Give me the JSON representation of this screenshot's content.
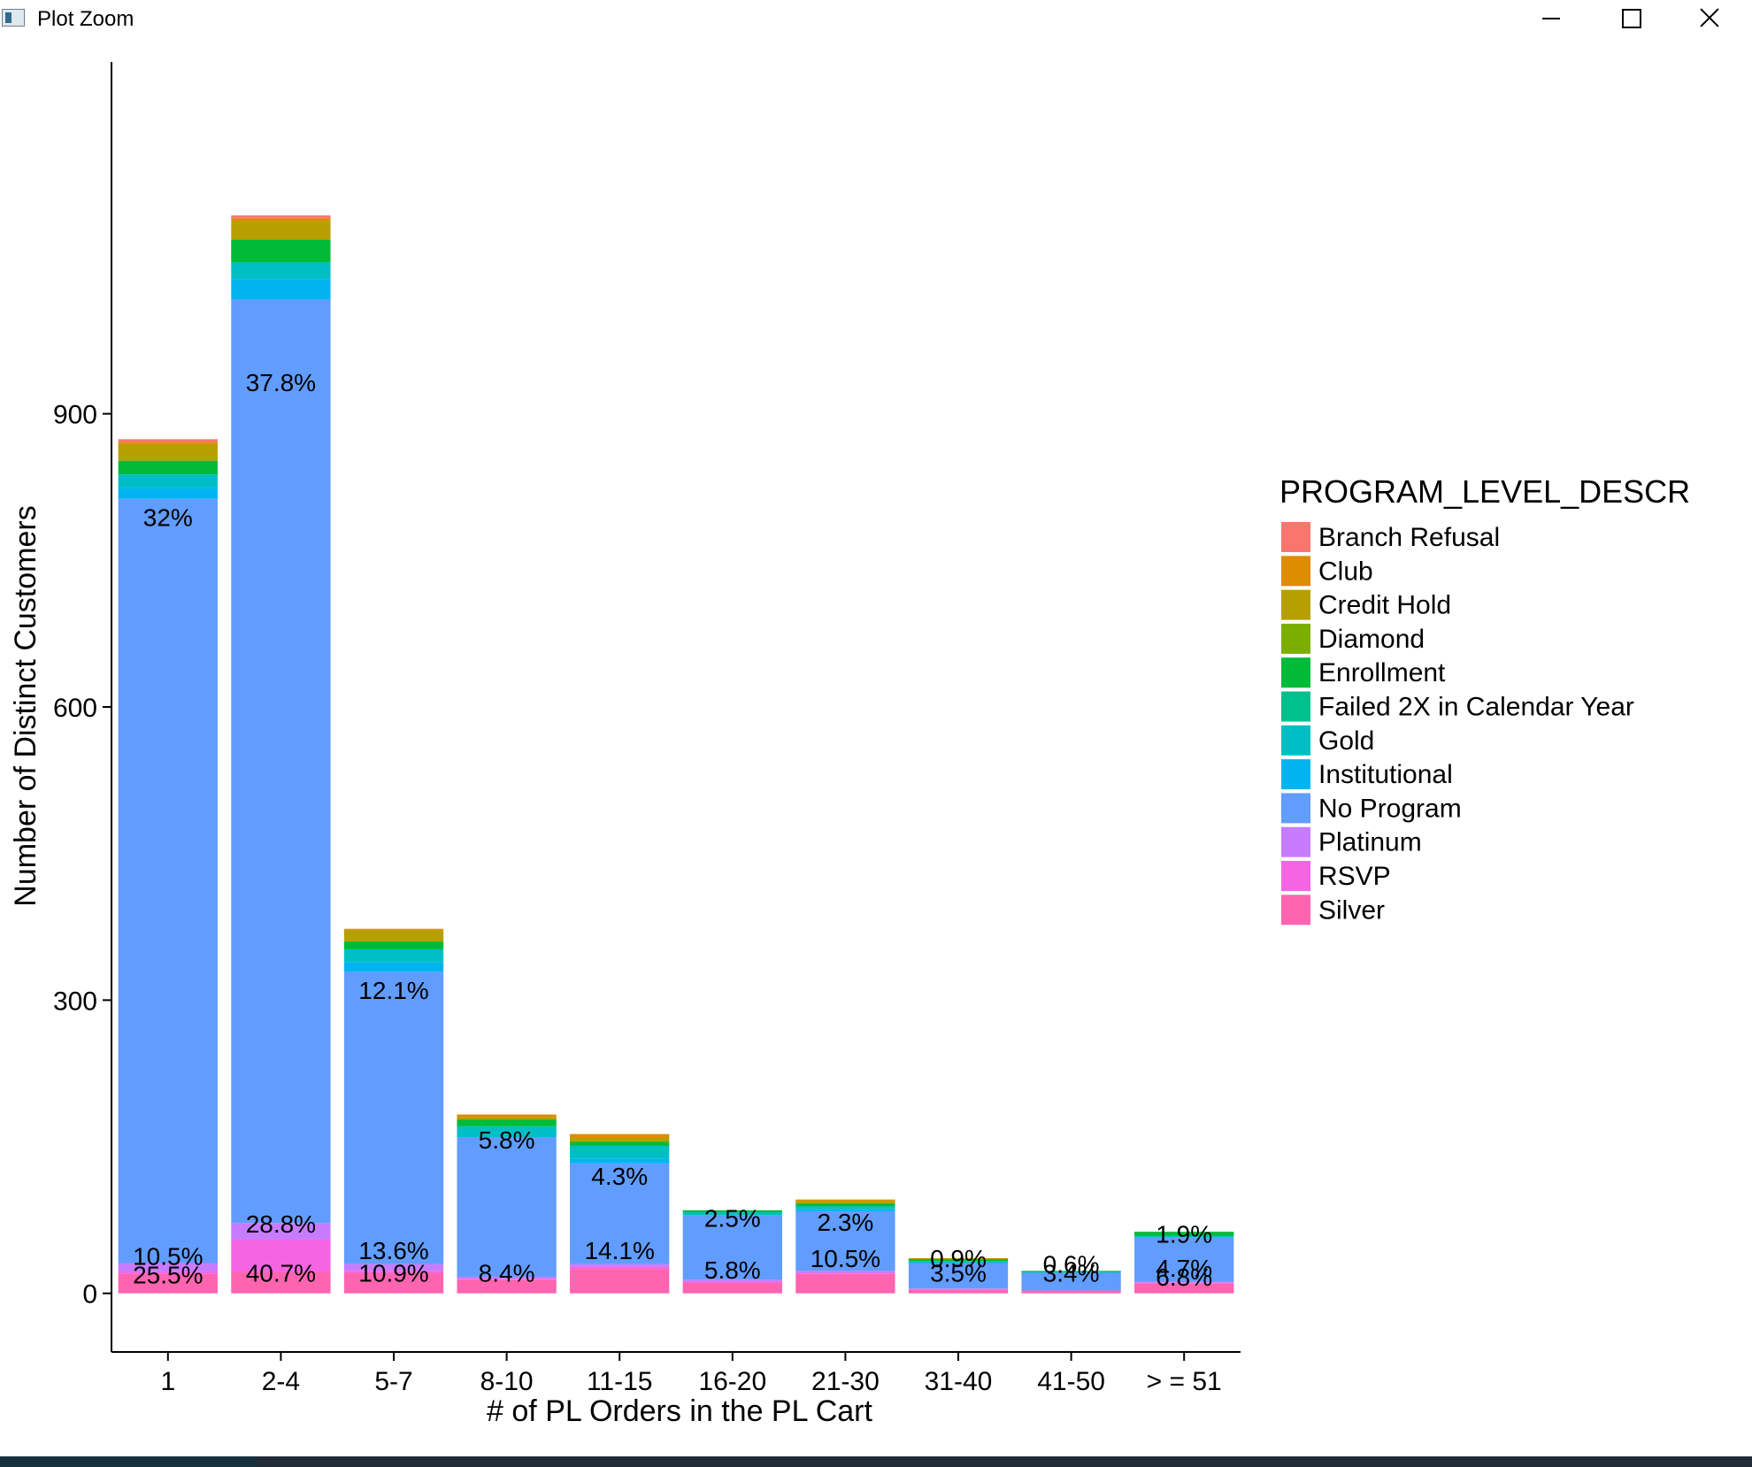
{
  "window": {
    "title": "Plot Zoom"
  },
  "chart_data": {
    "type": "bar",
    "stacked": true,
    "title": "",
    "xlabel": "# of PL Orders in the PL Cart",
    "ylabel": "Number of Distinct Customers",
    "ylim": [
      -60,
      1260
    ],
    "yticks": [
      0,
      300,
      600,
      900
    ],
    "grid": false,
    "legend_position": "right",
    "legend_title": "PROGRAM_LEVEL_DESCR",
    "categories": [
      "1",
      "2-4",
      "5-7",
      "8-10",
      "11-15",
      "16-20",
      "21-30",
      "31-40",
      "41-50",
      "> = 51"
    ],
    "series": [
      {
        "name": "Branch Refusal",
        "color": "#F8766D",
        "values": [
          3,
          3,
          0,
          0,
          0,
          0,
          0,
          0,
          0,
          0
        ]
      },
      {
        "name": "Club",
        "color": "#DE8C00",
        "values": [
          2,
          3,
          1,
          3,
          3,
          0,
          2,
          0,
          0,
          0
        ]
      },
      {
        "name": "Credit Hold",
        "color": "#B79F00",
        "values": [
          17,
          19,
          12,
          2,
          5,
          0,
          2,
          1,
          0,
          0
        ]
      },
      {
        "name": "Diamond",
        "color": "#7CAE00",
        "values": [
          0,
          0,
          0,
          0,
          0,
          0,
          0,
          0,
          0,
          0
        ]
      },
      {
        "name": "Enrollment",
        "color": "#00BA38",
        "values": [
          14,
          23,
          8,
          7,
          4,
          2,
          3,
          2,
          1,
          4
        ]
      },
      {
        "name": "Failed 2X in Calendar Year",
        "color": "#00C08B",
        "values": [
          0,
          0,
          0,
          0,
          0,
          0,
          0,
          0,
          0,
          0
        ]
      },
      {
        "name": "Gold",
        "color": "#00BFC4",
        "values": [
          14,
          17,
          13,
          11,
          13,
          3,
          3,
          2,
          1,
          2
        ]
      },
      {
        "name": "Institutional",
        "color": "#00B4F0",
        "values": [
          11,
          21,
          10,
          0,
          5,
          0,
          2,
          0,
          0,
          0
        ]
      },
      {
        "name": "No Program",
        "color": "#619CFF",
        "values": [
          782,
          945,
          299,
          143,
          103,
          66,
          61,
          26,
          18,
          45
        ]
      },
      {
        "name": "Platinum",
        "color": "#C77CFF",
        "values": [
          9,
          17,
          7,
          2,
          3,
          2,
          2,
          1,
          0,
          1
        ]
      },
      {
        "name": "RSVP",
        "color": "#F564E3",
        "values": [
          2,
          33,
          2,
          1,
          2,
          1,
          1,
          0,
          0,
          1
        ]
      },
      {
        "name": "Silver",
        "color": "#FF64B0",
        "values": [
          20,
          22,
          21,
          14,
          25,
          11,
          20,
          4,
          3,
          10
        ]
      }
    ],
    "annotations": [
      {
        "category": "1",
        "y": 795,
        "text": "32%"
      },
      {
        "category": "2-4",
        "y": 933,
        "text": "37.8%"
      },
      {
        "category": "5-7",
        "y": 311,
        "text": "12.1%"
      },
      {
        "category": "8-10",
        "y": 158,
        "text": "5.8%"
      },
      {
        "category": "11-15",
        "y": 121,
        "text": "4.3%"
      },
      {
        "category": "16-20",
        "y": 78,
        "text": "2.5%"
      },
      {
        "category": "21-30",
        "y": 74,
        "text": "2.3%"
      },
      {
        "category": "31-40",
        "y": 37,
        "text": "0.9%"
      },
      {
        "category": "41-50",
        "y": 31,
        "text": "0.6%"
      },
      {
        "category": "> = 51",
        "y": 62,
        "text": "1.9%"
      },
      {
        "category": "2-4",
        "y": 72,
        "text": "28.8%"
      },
      {
        "category": "5-7",
        "y": 45,
        "text": "13.6%"
      },
      {
        "category": "11-15",
        "y": 45,
        "text": "14.1%"
      },
      {
        "category": "21-30",
        "y": 37,
        "text": "10.5%"
      },
      {
        "category": "1",
        "y": 39,
        "text": "10.5%"
      },
      {
        "category": "1",
        "y": 20,
        "text": "25.5%"
      },
      {
        "category": "2-4",
        "y": 22,
        "text": "40.7%"
      },
      {
        "category": "5-7",
        "y": 22,
        "text": "10.9%"
      },
      {
        "category": "8-10",
        "y": 22,
        "text": "8.4%"
      },
      {
        "category": "16-20",
        "y": 25,
        "text": "5.8%"
      },
      {
        "category": "31-40",
        "y": 22,
        "text": "3.5%"
      },
      {
        "category": "41-50",
        "y": 22,
        "text": "3.4%"
      },
      {
        "category": "> = 51",
        "y": 27,
        "text": "4.7%"
      },
      {
        "category": "> = 51",
        "y": 18,
        "text": "6.8%"
      }
    ]
  }
}
